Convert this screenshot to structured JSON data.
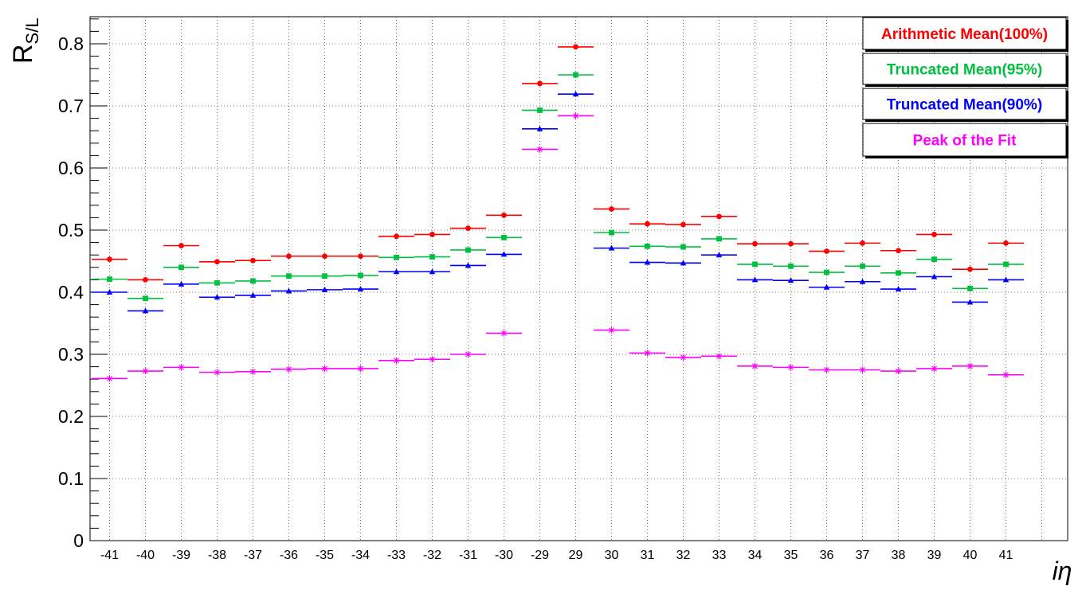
{
  "chart_data": {
    "type": "scatter",
    "title": "",
    "xlabel": "iη",
    "ylabel": "R",
    "ylabel_sub": "S/L",
    "ylim": [
      0,
      0.84
    ],
    "yticks": [
      "0",
      "0.1",
      "0.2",
      "0.3",
      "0.4",
      "0.5",
      "0.6",
      "0.7",
      "0.8"
    ],
    "grid": true,
    "legend_position": "top-right",
    "categories": [
      "-41",
      "-40",
      "-39",
      "-38",
      "-37",
      "-36",
      "-35",
      "-34",
      "-33",
      "-32",
      "-31",
      "-30",
      "-29",
      "29",
      "30",
      "31",
      "32",
      "33",
      "34",
      "35",
      "36",
      "37",
      "38",
      "39",
      "40",
      "41"
    ],
    "series": [
      {
        "name": "Arithmetic Mean(100%)",
        "color": "#ff0000",
        "marker": "circle",
        "values": [
          0.453,
          0.42,
          0.475,
          0.449,
          0.451,
          0.458,
          0.458,
          0.458,
          0.49,
          0.493,
          0.503,
          0.524,
          0.736,
          0.795,
          0.534,
          0.51,
          0.509,
          0.522,
          0.478,
          0.478,
          0.466,
          0.479,
          0.467,
          0.493,
          0.437,
          0.479
        ]
      },
      {
        "name": "Truncated Mean(95%)",
        "color": "#00c040",
        "marker": "square",
        "values": [
          0.421,
          0.39,
          0.44,
          0.415,
          0.418,
          0.426,
          0.426,
          0.427,
          0.456,
          0.457,
          0.468,
          0.488,
          0.693,
          0.75,
          0.496,
          0.474,
          0.473,
          0.486,
          0.445,
          0.442,
          0.432,
          0.442,
          0.431,
          0.453,
          0.406,
          0.445
        ]
      },
      {
        "name": "Truncated Mean(90%)",
        "color": "#0000ff",
        "marker": "triangle",
        "values": [
          0.4,
          0.37,
          0.413,
          0.392,
          0.395,
          0.402,
          0.404,
          0.405,
          0.433,
          0.433,
          0.443,
          0.461,
          0.663,
          0.719,
          0.471,
          0.448,
          0.447,
          0.46,
          0.42,
          0.419,
          0.408,
          0.417,
          0.405,
          0.425,
          0.384,
          0.42
        ]
      },
      {
        "name": "Peak of the Fit",
        "color": "#ff00ff",
        "marker": "star",
        "values": [
          0.261,
          0.273,
          0.279,
          0.271,
          0.272,
          0.276,
          0.277,
          0.277,
          0.29,
          0.292,
          0.3,
          0.334,
          0.63,
          0.684,
          0.339,
          0.302,
          0.295,
          0.297,
          0.281,
          0.279,
          0.275,
          0.275,
          0.273,
          0.277,
          0.281,
          0.267
        ]
      }
    ]
  }
}
